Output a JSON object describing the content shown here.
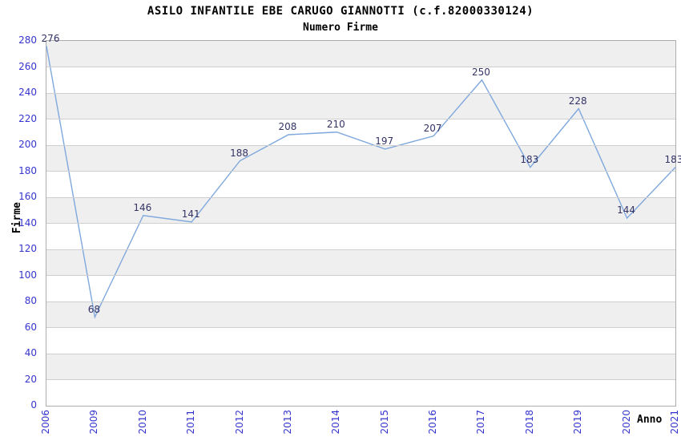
{
  "title": "ASILO INFANTILE EBE CARUGO GIANNOTTI (c.f.82000330124)",
  "subtitle": "Numero Firme",
  "chart_data": {
    "type": "line",
    "title": "ASILO INFANTILE EBE CARUGO GIANNOTTI (c.f.82000330124)",
    "subtitle": "Numero Firme",
    "xlabel": "Anno",
    "ylabel": "Firme",
    "categories": [
      "2006",
      "2009",
      "2010",
      "2011",
      "2012",
      "2013",
      "2014",
      "2015",
      "2016",
      "2017",
      "2018",
      "2019",
      "2020",
      "2021"
    ],
    "series": [
      {
        "name": "Numero Firme",
        "values": [
          276,
          68,
          146,
          141,
          188,
          208,
          210,
          197,
          207,
          250,
          183,
          228,
          144,
          183
        ]
      }
    ],
    "ylim": [
      0,
      280
    ],
    "y_ticks": [
      0,
      20,
      40,
      60,
      80,
      100,
      120,
      140,
      160,
      180,
      200,
      220,
      240,
      260,
      280
    ],
    "grid": "horizontal-gridlines-with-alternating-bands",
    "legend_position": "none",
    "data_labels_shown": true,
    "colors": {
      "line": "#7FA8DD",
      "tick_label": "#3535CE",
      "data_label": "#333366",
      "band_gray": "#EFEFEF",
      "gridline": "#CFCFCF",
      "plot_border": "#ADADAD",
      "title_text": "#000000",
      "background": "#FFFFFF"
    }
  }
}
